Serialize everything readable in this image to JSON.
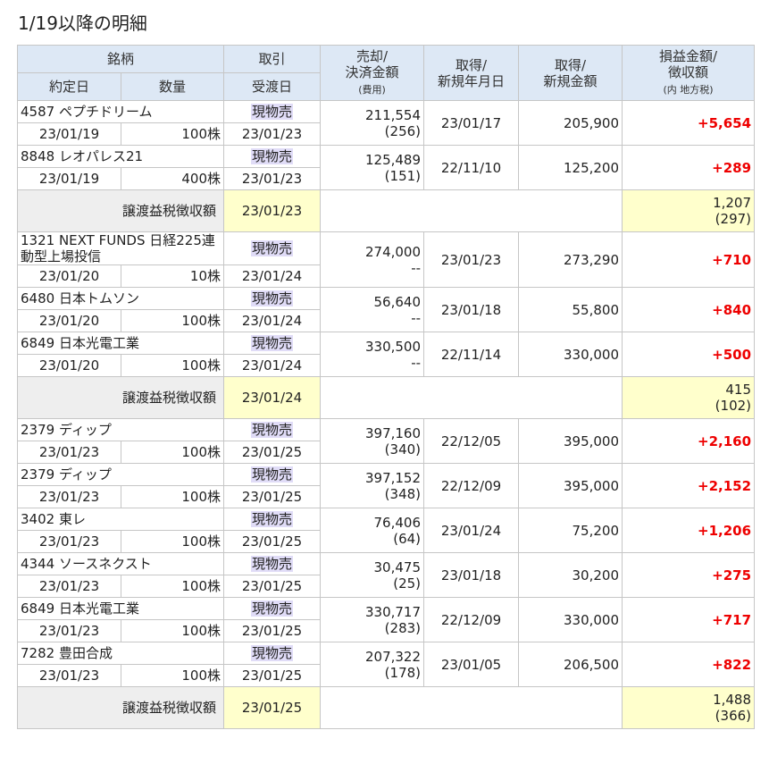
{
  "title": "1/19以降の明細",
  "header": {
    "stock": "銘柄",
    "trade": "取引",
    "sell": [
      "売却/",
      "決済金額"
    ],
    "sell_sub": "(費用)",
    "acq_date": [
      "取得/",
      "新規年月日"
    ],
    "acq_amount": [
      "取得/",
      "新規金額"
    ],
    "pl": [
      "損益金額/",
      "徴収額"
    ],
    "pl_sub": "(内 地方税)",
    "exec_date": "約定日",
    "qty": "数量",
    "settle": "受渡日"
  },
  "rows": [
    {
      "name": "4587 ペプチドリーム",
      "trade": "現物売",
      "date": "23/01/19",
      "qty": "100株",
      "settle": "23/01/23",
      "amount": "211,554",
      "fee": "(256)",
      "acq_date": "23/01/17",
      "acq_amount": "205,900",
      "pl": "+5,654"
    },
    {
      "name": "8848 レオパレス21",
      "trade": "現物売",
      "date": "23/01/19",
      "qty": "400株",
      "settle": "23/01/23",
      "amount": "125,489",
      "fee": "(151)",
      "acq_date": "22/11/10",
      "acq_amount": "125,200",
      "pl": "+289"
    },
    {
      "label": "譲渡益税徴収額",
      "settle": "23/01/23",
      "tax": "1,207",
      "local": "(297)"
    },
    {
      "name": "1321 NEXT FUNDS 日経225連動型上場投信",
      "trade": "現物売",
      "date": "23/01/20",
      "qty": "10株",
      "settle": "23/01/24",
      "amount": "274,000",
      "fee": "--",
      "acq_date": "23/01/23",
      "acq_amount": "273,290",
      "pl": "+710"
    },
    {
      "name": "6480 日本トムソン",
      "trade": "現物売",
      "date": "23/01/20",
      "qty": "100株",
      "settle": "23/01/24",
      "amount": "56,640",
      "fee": "--",
      "acq_date": "23/01/18",
      "acq_amount": "55,800",
      "pl": "+840"
    },
    {
      "name": "6849 日本光電工業",
      "trade": "現物売",
      "date": "23/01/20",
      "qty": "100株",
      "settle": "23/01/24",
      "amount": "330,500",
      "fee": "--",
      "acq_date": "22/11/14",
      "acq_amount": "330,000",
      "pl": "+500"
    },
    {
      "label": "譲渡益税徴収額",
      "settle": "23/01/24",
      "tax": "415",
      "local": "(102)"
    },
    {
      "name": "2379 ディップ",
      "trade": "現物売",
      "date": "23/01/23",
      "qty": "100株",
      "settle": "23/01/25",
      "amount": "397,160",
      "fee": "(340)",
      "acq_date": "22/12/05",
      "acq_amount": "395,000",
      "pl": "+2,160"
    },
    {
      "name": "2379 ディップ",
      "trade": "現物売",
      "date": "23/01/23",
      "qty": "100株",
      "settle": "23/01/25",
      "amount": "397,152",
      "fee": "(348)",
      "acq_date": "22/12/09",
      "acq_amount": "395,000",
      "pl": "+2,152"
    },
    {
      "name": "3402 東レ",
      "trade": "現物売",
      "date": "23/01/23",
      "qty": "100株",
      "settle": "23/01/25",
      "amount": "76,406",
      "fee": "(64)",
      "acq_date": "23/01/24",
      "acq_amount": "75,200",
      "pl": "+1,206"
    },
    {
      "name": "4344 ソースネクスト",
      "trade": "現物売",
      "date": "23/01/23",
      "qty": "100株",
      "settle": "23/01/25",
      "amount": "30,475",
      "fee": "(25)",
      "acq_date": "23/01/18",
      "acq_amount": "30,200",
      "pl": "+275"
    },
    {
      "name": "6849 日本光電工業",
      "trade": "現物売",
      "date": "23/01/23",
      "qty": "100株",
      "settle": "23/01/25",
      "amount": "330,717",
      "fee": "(283)",
      "acq_date": "22/12/09",
      "acq_amount": "330,000",
      "pl": "+717"
    },
    {
      "name": "7282 豊田合成",
      "trade": "現物売",
      "date": "23/01/23",
      "qty": "100株",
      "settle": "23/01/25",
      "amount": "207,322",
      "fee": "(178)",
      "acq_date": "23/01/05",
      "acq_amount": "206,500",
      "pl": "+822"
    },
    {
      "label": "譲渡益税徴収額",
      "settle": "23/01/25",
      "tax": "1,488",
      "local": "(366)"
    }
  ]
}
